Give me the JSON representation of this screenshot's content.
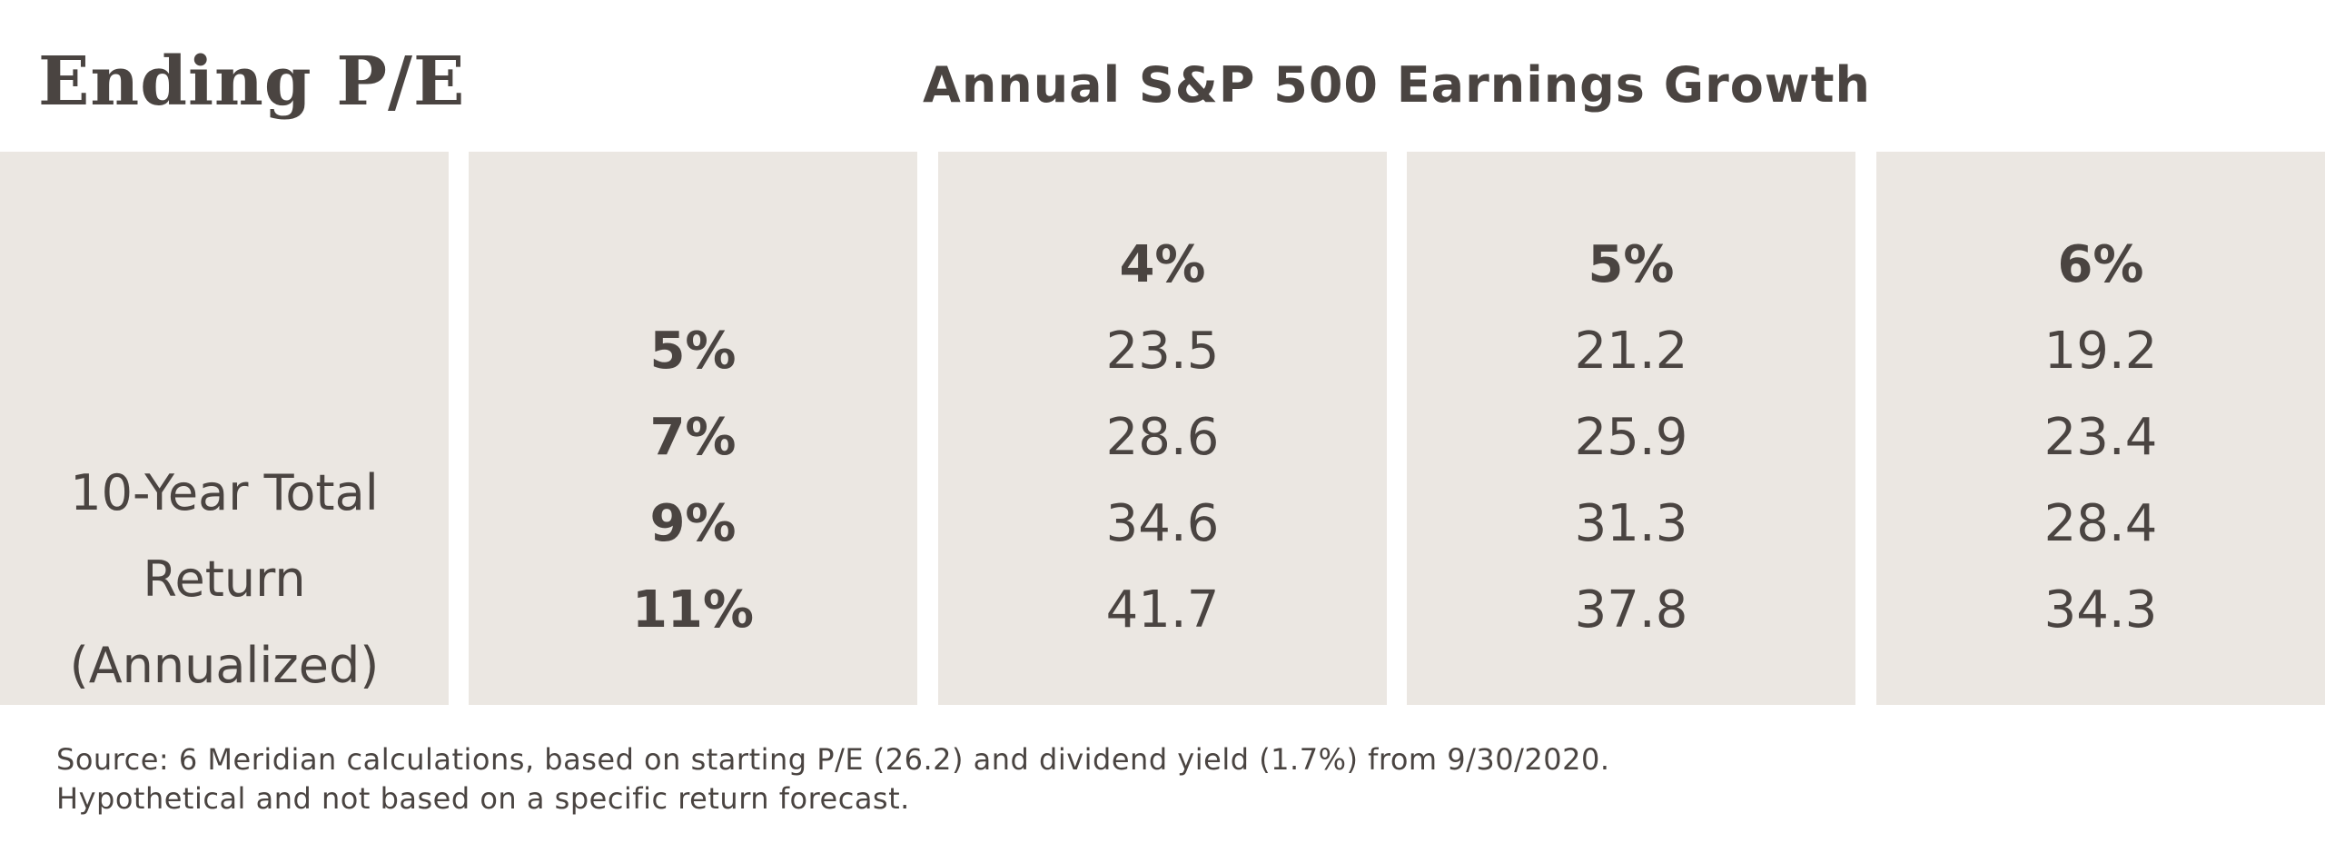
{
  "chart_data": {
    "type": "table",
    "title": "Ending P/E",
    "column_group_label": "Annual S&P 500 Earnings Growth",
    "row_group_label": [
      "10-Year Total",
      "Return",
      "(Annualized)"
    ],
    "columns": [
      "4%",
      "5%",
      "6%"
    ],
    "rows": [
      {
        "label": "5%",
        "values": [
          "23.5",
          "21.2",
          "19.2"
        ]
      },
      {
        "label": "7%",
        "values": [
          "28.6",
          "25.9",
          "23.4"
        ]
      },
      {
        "label": "9%",
        "values": [
          "34.6",
          "31.3",
          "28.4"
        ]
      },
      {
        "label": "11%",
        "values": [
          "41.7",
          "37.8",
          "34.3"
        ]
      }
    ]
  },
  "footnote": {
    "line1": "Source: 6 Meridian calculations, based on starting P/E (26.2) and dividend yield (1.7%) from 9/30/2020.",
    "line2": "Hypothetical and not based on a specific return forecast."
  },
  "colors": {
    "text": "#4a4441",
    "panel_background": "#ebe7e2",
    "page_background": "#ffffff"
  }
}
